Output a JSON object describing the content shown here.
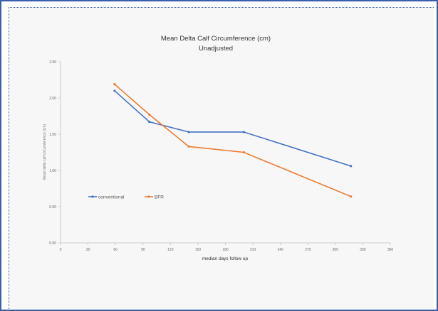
{
  "colors": {
    "conventional": "#4472c4",
    "bfr": "#ed7d31",
    "axis": "#bfbfbf",
    "frame": "#3b5ea8"
  },
  "chart_data": {
    "type": "line",
    "title": "Mean Delta Calf Circumference (cm)",
    "subtitle": "Unadjusted",
    "xlabel": "median days follow up",
    "ylabel": "Mean delta calf circumference (cm)",
    "xlim": [
      0,
      360
    ],
    "ylim": [
      0,
      2.5
    ],
    "xticks": [
      0,
      30,
      60,
      90,
      120,
      150,
      180,
      210,
      240,
      270,
      300,
      330,
      360
    ],
    "xtick_labels": [
      "0",
      "30",
      "60",
      "90",
      "120",
      "150",
      "180",
      "210",
      "240",
      "270",
      "300",
      "330",
      "360"
    ],
    "yticks": [
      0,
      0.5,
      1.0,
      1.5,
      2.0,
      2.5
    ],
    "ytick_labels": [
      "0.00",
      "0.50",
      "1.00",
      "1.50",
      "2.00",
      "2.50"
    ],
    "grid": false,
    "legend_position": "left-middle",
    "series": [
      {
        "name": "conventional",
        "color": "#4472c4",
        "x": [
          59,
          97,
          140,
          200,
          317
        ],
        "y": [
          2.1,
          1.67,
          1.53,
          1.53,
          1.06
        ]
      },
      {
        "name": "BFR",
        "color": "#ed7d31",
        "x": [
          59,
          97,
          140,
          200,
          317
        ],
        "y": [
          2.19,
          1.77,
          1.33,
          1.25,
          0.64
        ]
      }
    ]
  }
}
